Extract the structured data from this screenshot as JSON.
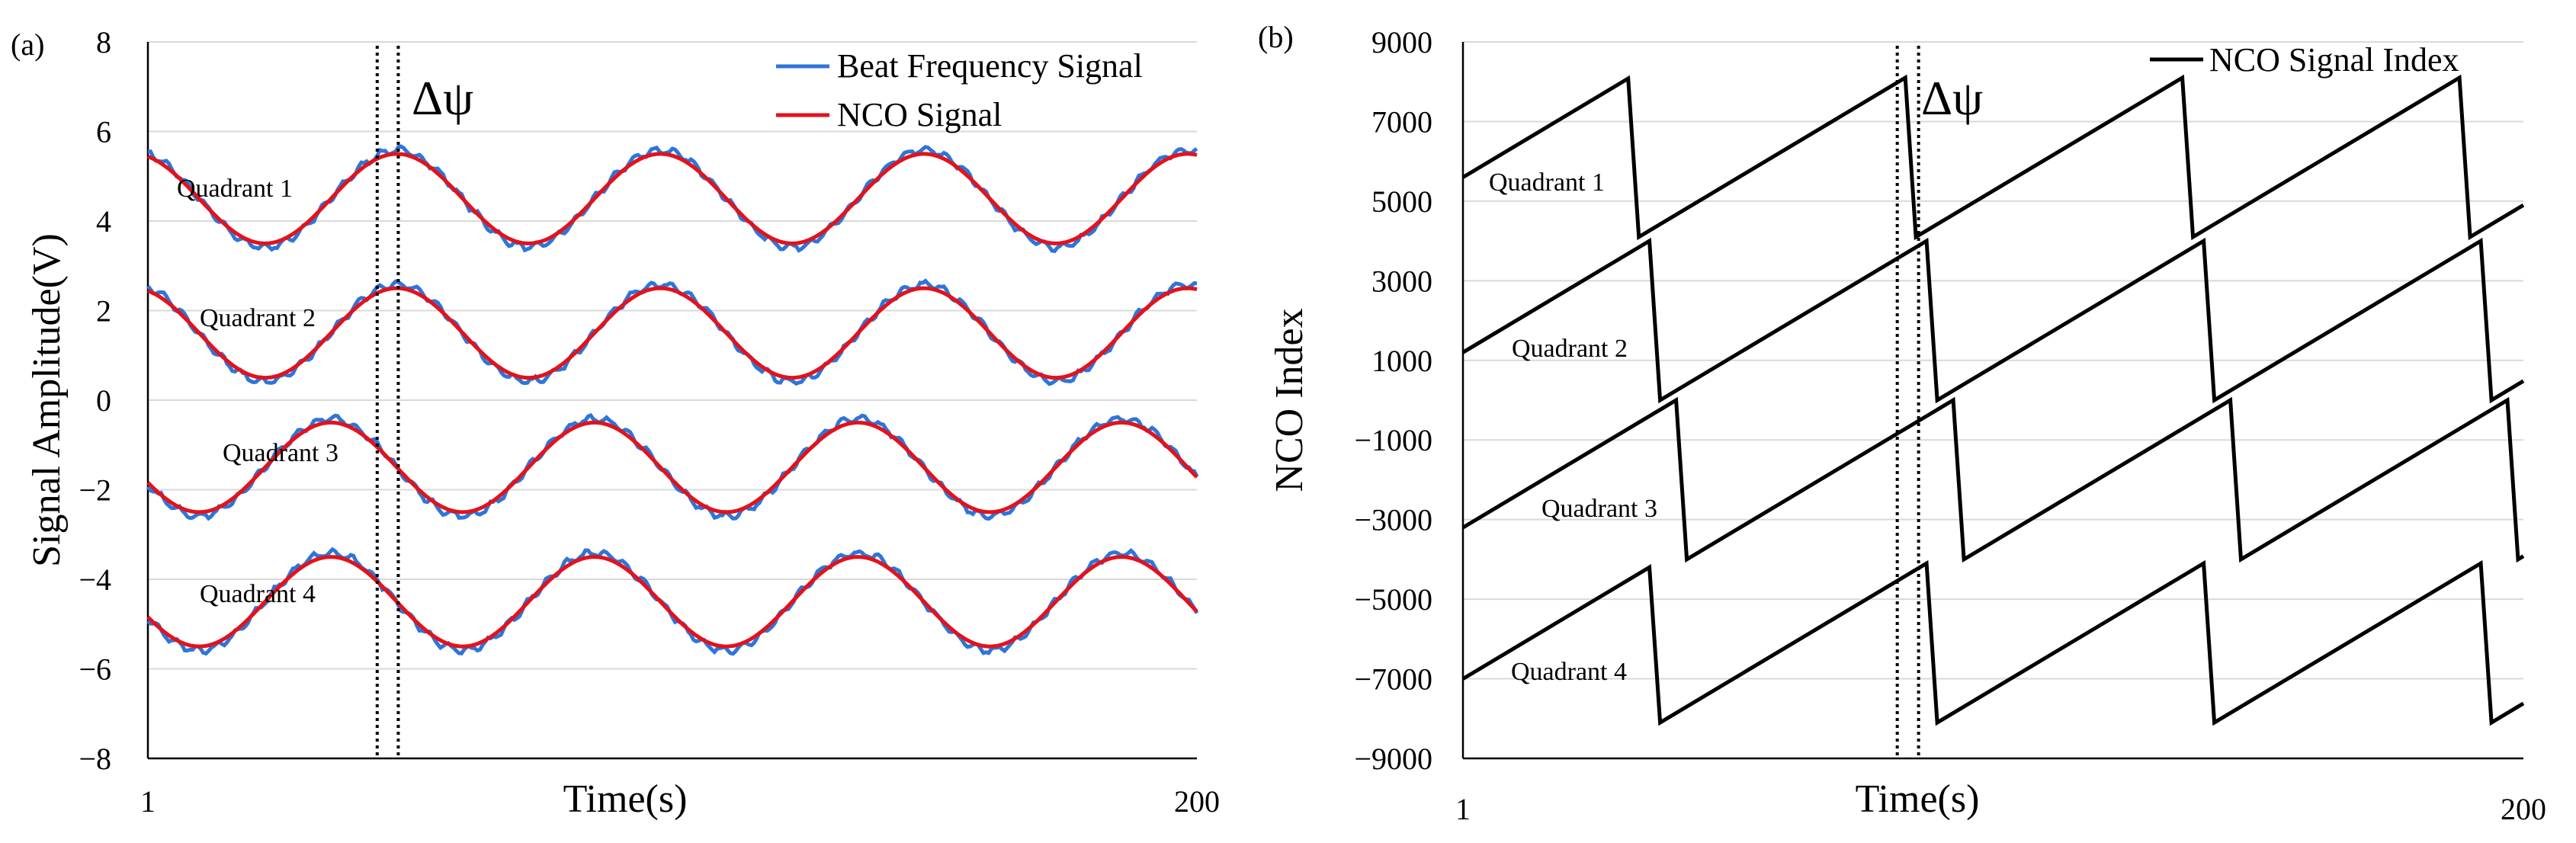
{
  "chart_data": [
    {
      "panel_label": "(a)",
      "type": "line",
      "xlabel": "Time(s)",
      "ylabel": "Signal Amplitude(V)",
      "xlim": [
        1,
        200
      ],
      "ylim": [
        -8,
        8
      ],
      "x_tick_labels": [
        "1",
        "200"
      ],
      "y_ticks": [
        8,
        6,
        4,
        2,
        0,
        -2,
        -4,
        -6,
        -8
      ],
      "y_tick_labels": [
        "8",
        "6",
        "4",
        "2",
        "0",
        "−2",
        "−4",
        "−6",
        "−8"
      ],
      "grid": true,
      "legend": [
        "Beat Frequency Signal",
        "NCO Signal"
      ],
      "legend_position": "top-right",
      "period": 50,
      "amplitude": 1.0,
      "series": [
        {
          "name": "Quadrant 1",
          "offset": 4.5,
          "phase_deg": 110
        },
        {
          "name": "Quadrant 2",
          "offset": 1.5,
          "phase_deg": 110
        },
        {
          "name": "Quadrant 3",
          "offset": -1.5,
          "phase_deg": 200
        },
        {
          "name": "Quadrant 4",
          "offset": -4.5,
          "phase_deg": 200
        }
      ],
      "colors": {
        "beat": "#2e75d8",
        "nco": "#e3121b"
      },
      "delta_label": "Δψ",
      "dotted_lines_x": [
        44.5,
        48.5
      ]
    },
    {
      "panel_label": "(b)",
      "type": "line",
      "xlabel": "Time(s)",
      "ylabel": "NCO Index",
      "xlim": [
        1,
        200
      ],
      "ylim": [
        -9000,
        9000
      ],
      "x_tick_labels": [
        "1",
        "200"
      ],
      "y_ticks": [
        9000,
        7000,
        5000,
        3000,
        1000,
        -1000,
        -3000,
        -5000,
        -7000,
        -9000
      ],
      "y_tick_labels": [
        "9000",
        "7000",
        "5000",
        "3000",
        "1000",
        "−1000",
        "−3000",
        "−5000",
        "−7000",
        "−9000"
      ],
      "grid": true,
      "legend": [
        "NCO Signal Index"
      ],
      "legend_position": "top-right",
      "period": 50,
      "series": [
        {
          "name": "Quadrant 1",
          "start": 5600,
          "low": 4100,
          "high": 8100,
          "reset_x": 32
        },
        {
          "name": "Quadrant 2",
          "start": 1200,
          "low": 0,
          "high": 4000,
          "reset_x": 36
        },
        {
          "name": "Quadrant 3",
          "start": -3200,
          "low": -4000,
          "high": 0,
          "reset_x": 41
        },
        {
          "name": "Quadrant 4",
          "start": -7000,
          "low": -8100,
          "high": -4100,
          "reset_x": 36
        }
      ],
      "color": "#000000",
      "delta_label": "Δψ",
      "dotted_lines_x": [
        82.5,
        86.5
      ]
    }
  ]
}
